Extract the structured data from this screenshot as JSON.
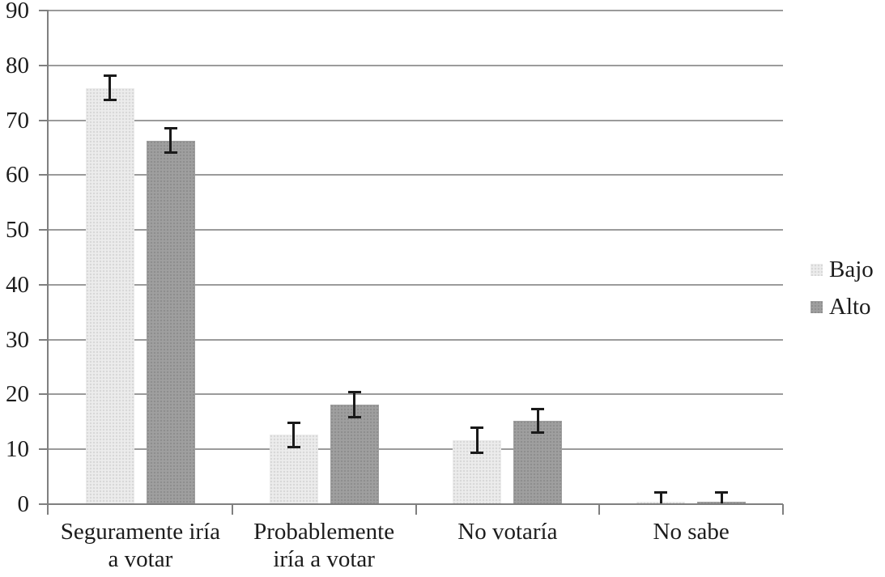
{
  "chart_data": {
    "type": "bar",
    "title": "",
    "xlabel": "",
    "ylabel": "",
    "categories": [
      "Seguramente iría a votar",
      "Probablemente iría a votar",
      "No votaría",
      "No sabe"
    ],
    "category_label_lines": [
      [
        "Seguramente iría",
        "a votar"
      ],
      [
        "Probablemente",
        "iría a votar"
      ],
      [
        "No votaría"
      ],
      [
        "No sabe"
      ]
    ],
    "series": [
      {
        "name": "Bajo",
        "values": [
          75.9,
          12.7,
          11.6,
          0.5
        ],
        "error_low": [
          73.7,
          10.4,
          9.4,
          0
        ],
        "error_high": [
          78.1,
          14.9,
          13.9,
          2.2
        ],
        "fill": "#ececec",
        "dot": "#d7d7d7"
      },
      {
        "name": "Alto",
        "values": [
          66.2,
          18.2,
          15.2,
          0.5
        ],
        "error_low": [
          64.1,
          15.9,
          13.0,
          0
        ],
        "error_high": [
          68.5,
          20.5,
          17.3,
          2.2
        ],
        "fill": "#9f9f9f",
        "dot": "#8d8d8d"
      }
    ],
    "yticks": [
      0,
      10,
      20,
      30,
      40,
      50,
      60,
      70,
      80,
      90
    ],
    "ylim": [
      0,
      90
    ],
    "grid": true,
    "error_bars": true,
    "legend_position": "right",
    "colors": {
      "grid": "#9b9b9b",
      "axis": "#7f7f7f",
      "error_bar": "#1a1a1a",
      "text": "#1c1c1c",
      "background": "#ffffff",
      "series_bajo": "#ececec",
      "series_alto": "#9f9f9f"
    }
  },
  "legend": {
    "items": [
      {
        "label": "Bajo"
      },
      {
        "label": "Alto"
      }
    ]
  }
}
